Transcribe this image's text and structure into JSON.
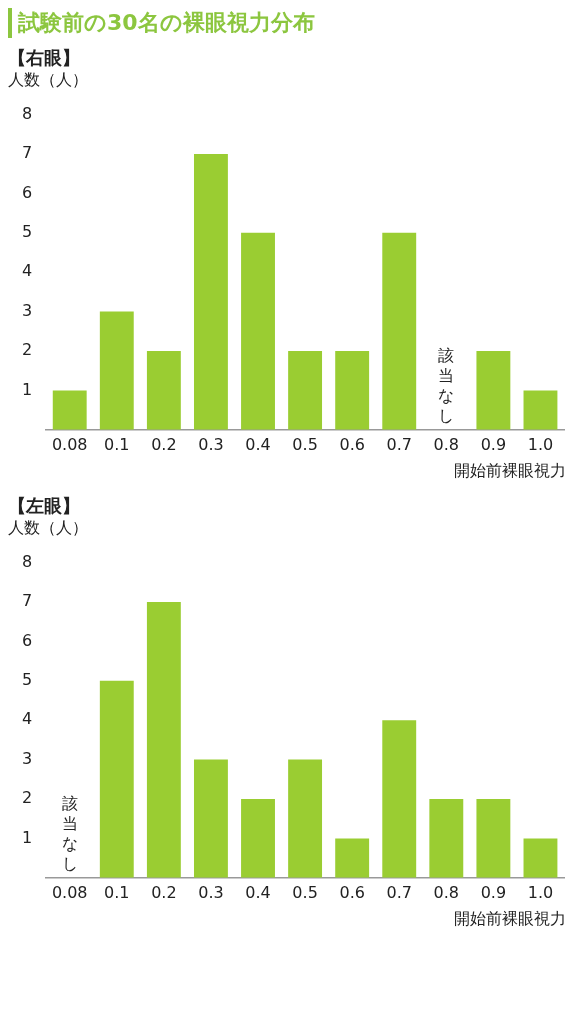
{
  "chart_data": [
    {
      "type": "bar",
      "title": "試験前の30名の裸眼視力分布",
      "subtitle": "【右眼】",
      "ylabel": "人数（人）",
      "xlabel": "開始前裸眼視力",
      "categories": [
        "0.08",
        "0.1",
        "0.2",
        "0.3",
        "0.4",
        "0.5",
        "0.6",
        "0.7",
        "0.8",
        "0.9",
        "1.0"
      ],
      "values": [
        1,
        3,
        2,
        7,
        5,
        2,
        2,
        5,
        0,
        2,
        1
      ],
      "color": "#9acd32",
      "ylim": [
        0,
        8
      ],
      "yticks": [
        1,
        2,
        3,
        4,
        5,
        6,
        7,
        8
      ],
      "grid": false,
      "annotations": [
        {
          "text": "該当なし",
          "x": "0.8",
          "y": 0
        }
      ]
    },
    {
      "type": "bar",
      "subtitle": "【左眼】",
      "ylabel": "人数（人）",
      "xlabel": "開始前裸眼視力",
      "categories": [
        "0.08",
        "0.1",
        "0.2",
        "0.3",
        "0.4",
        "0.5",
        "0.6",
        "0.7",
        "0.8",
        "0.9",
        "1.0"
      ],
      "values": [
        0,
        5,
        7,
        3,
        2,
        3,
        1,
        4,
        2,
        2,
        1
      ],
      "color": "#9acd32",
      "ylim": [
        0,
        8
      ],
      "yticks": [
        1,
        2,
        3,
        4,
        5,
        6,
        7,
        8
      ],
      "grid": false,
      "annotations": [
        {
          "text": "該当なし",
          "x": "0.08",
          "y": 0
        }
      ]
    }
  ]
}
